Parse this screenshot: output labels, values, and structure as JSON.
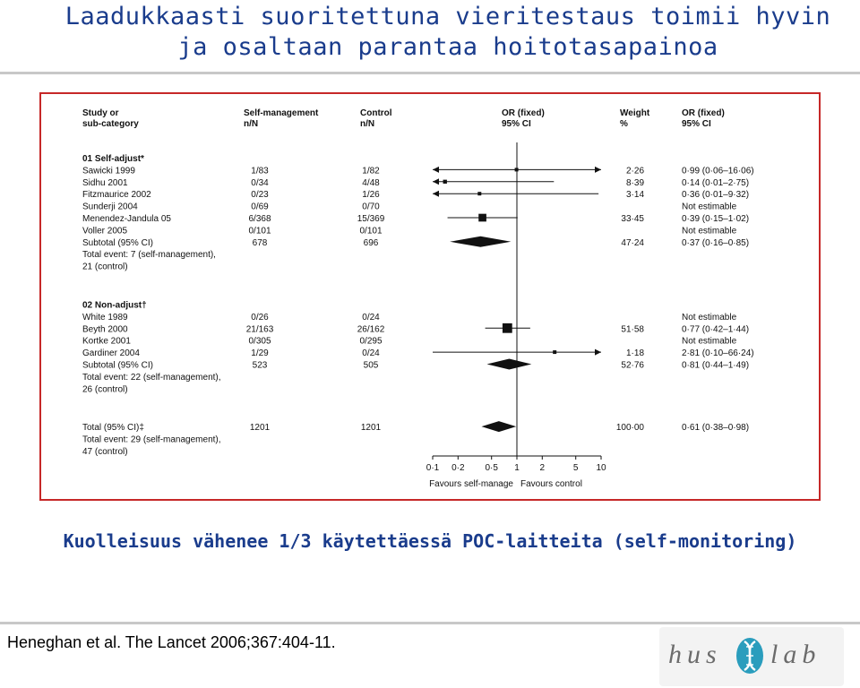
{
  "slide": {
    "title_line1": "Laadukkaasti suoritettuna vieritestaus toimii hyvin",
    "title_line2": "ja osaltaan parantaa hoitotasapainoa",
    "conclusion": "Kuolleisuus vähenee 1/3 käytettäessä POC-laitteita (self-monitoring)",
    "citation": "Heneghan et al. The Lancet 2006;367:404-11.",
    "logo_text_left": "hus",
    "logo_text_right": "lab",
    "colors": {
      "title": "#1a3c8c",
      "frame": "#c62828"
    }
  },
  "chart_data": {
    "type": "forest",
    "scale": "log",
    "x_ticks": [
      0.1,
      0.2,
      0.5,
      1,
      2,
      5,
      10
    ],
    "x_tick_labels": [
      "0·1",
      "0·2",
      "0·5",
      "1",
      "2",
      "5",
      "10"
    ],
    "xlabel_left": "Favours self-manage",
    "xlabel_right": "Favours control",
    "headers": {
      "study": [
        "Study or",
        "sub-category"
      ],
      "sm": [
        "Self-management",
        "n/N"
      ],
      "ctrl": [
        "Control",
        "n/N"
      ],
      "or": [
        "OR (fixed)",
        "95% CI"
      ],
      "weight": [
        "Weight",
        "%"
      ],
      "or_text": [
        "OR (fixed)",
        "95% CI"
      ]
    },
    "rows": [
      {
        "kind": "group",
        "study": "01 Self-adjust*"
      },
      {
        "kind": "study",
        "study": "Sawicki 1999",
        "sm": "1/83",
        "ctrl": "1/82",
        "weight": "2·26",
        "or_text": "0·99 (0·06–16·06)",
        "or": 0.99,
        "lo": 0.06,
        "hi": 16.06,
        "w": 2.26
      },
      {
        "kind": "study",
        "study": "Sidhu 2001",
        "sm": "0/34",
        "ctrl": "4/48",
        "weight": "8·39",
        "or_text": "0·14 (0·01–2·75)",
        "or": 0.14,
        "lo": 0.01,
        "hi": 2.75,
        "w": 8.39
      },
      {
        "kind": "study",
        "study": "Fitzmaurice 2002",
        "sm": "0/23",
        "ctrl": "1/26",
        "weight": "3·14",
        "or_text": "0·36 (0·01–9·32)",
        "or": 0.36,
        "lo": 0.01,
        "hi": 9.32,
        "w": 3.14
      },
      {
        "kind": "study",
        "study": "Sunderji 2004",
        "sm": "0/69",
        "ctrl": "0/70",
        "weight": "",
        "or_text": "Not estimable"
      },
      {
        "kind": "study",
        "study": "Menendez-Jandula 05",
        "sm": "6/368",
        "ctrl": "15/369",
        "weight": "33·45",
        "or_text": "0·39 (0·15–1·02)",
        "or": 0.39,
        "lo": 0.15,
        "hi": 1.02,
        "w": 33.45
      },
      {
        "kind": "study",
        "study": "Voller 2005",
        "sm": "0/101",
        "ctrl": "0/101",
        "weight": "",
        "or_text": "Not estimable"
      },
      {
        "kind": "subtotal",
        "study": "Subtotal (95% CI)",
        "sm": "678",
        "ctrl": "696",
        "weight": "47·24",
        "or_text": "0·37 (0·16–0·85)",
        "or": 0.37,
        "lo": 0.16,
        "hi": 0.85
      },
      {
        "kind": "note",
        "study": "Total event: 7 (self-management),"
      },
      {
        "kind": "note",
        "study": "21 (control)"
      },
      {
        "kind": "gap"
      },
      {
        "kind": "group",
        "study": "02 Non-adjust†"
      },
      {
        "kind": "study",
        "study": "White 1989",
        "sm": "0/26",
        "ctrl": "0/24",
        "weight": "",
        "or_text": "Not estimable"
      },
      {
        "kind": "study",
        "study": "Beyth 2000",
        "sm": "21/163",
        "ctrl": "26/162",
        "weight": "51·58",
        "or_text": "0·77 (0·42–1·44)",
        "or": 0.77,
        "lo": 0.42,
        "hi": 1.44,
        "w": 51.58
      },
      {
        "kind": "study",
        "study": "Kortke 2001",
        "sm": "0/305",
        "ctrl": "0/295",
        "weight": "",
        "or_text": "Not estimable"
      },
      {
        "kind": "study",
        "study": "Gardiner 2004",
        "sm": "1/29",
        "ctrl": "0/24",
        "weight": "1·18",
        "or_text": "2·81 (0·10–66·24)",
        "or": 2.81,
        "lo": 0.1,
        "hi": 66.24,
        "w": 1.18
      },
      {
        "kind": "subtotal",
        "study": "Subtotal (95% CI)",
        "sm": "523",
        "ctrl": "505",
        "weight": "52·76",
        "or_text": "0·81 (0·44–1·49)",
        "or": 0.81,
        "lo": 0.44,
        "hi": 1.49
      },
      {
        "kind": "note",
        "study": "Total event: 22 (self-management),"
      },
      {
        "kind": "note",
        "study": "26 (control)"
      },
      {
        "kind": "gap"
      },
      {
        "kind": "total",
        "study": "Total (95% CI)‡",
        "sm": "1201",
        "ctrl": "1201",
        "weight": "100·00",
        "or_text": "0·61 (0·38–0·98)",
        "or": 0.61,
        "lo": 0.38,
        "hi": 0.98
      },
      {
        "kind": "note",
        "study": "Total event: 29 (self-management),"
      },
      {
        "kind": "note",
        "study": "47 (control)"
      }
    ]
  }
}
